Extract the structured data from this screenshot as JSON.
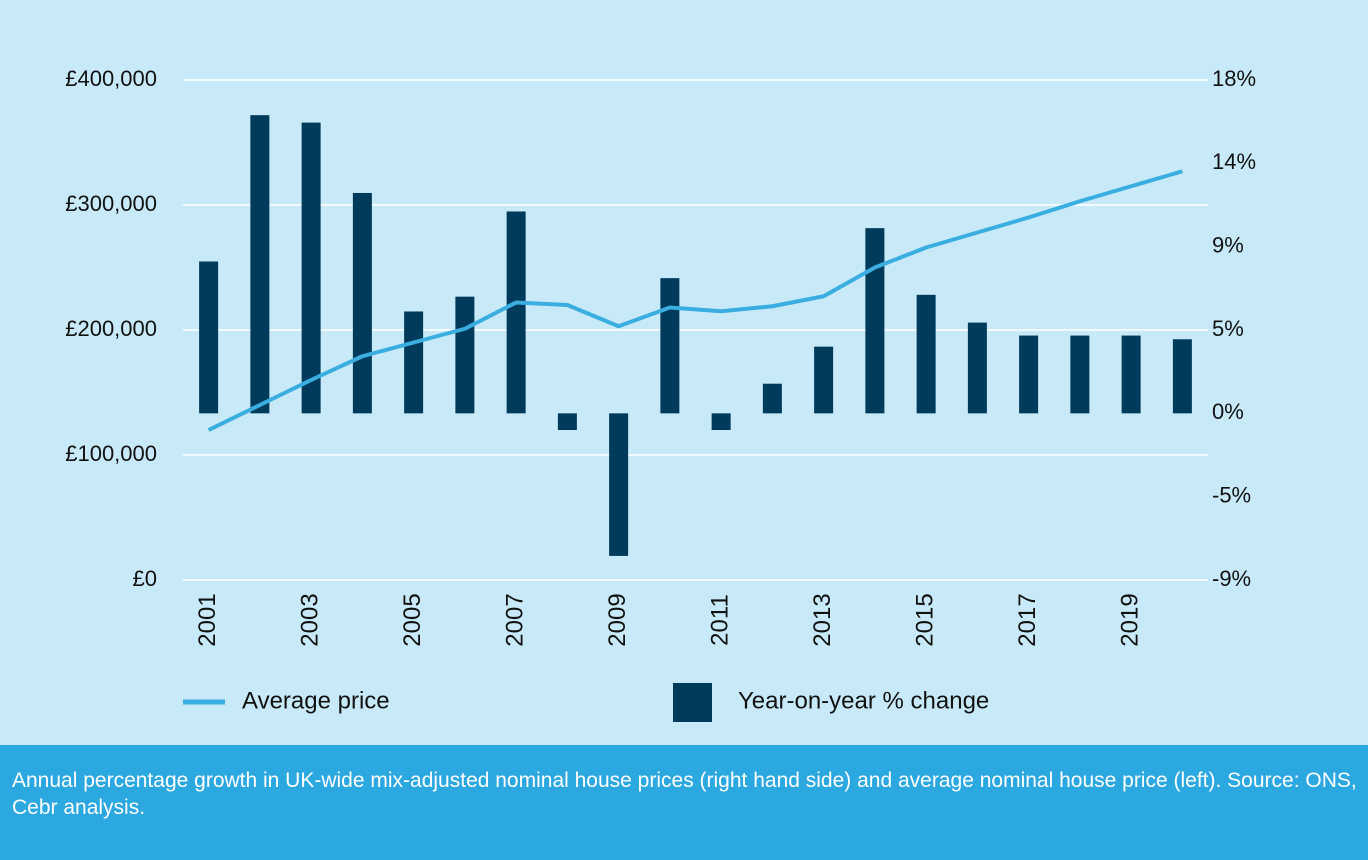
{
  "chart_data": {
    "type": "bar",
    "caption": "Annual percentage growth in UK-wide mix-adjusted nominal house prices (right hand side) and average nominal house price (left). Source: ONS, Cebr analysis.",
    "categories": [
      "2001",
      null,
      "2003",
      null,
      "2005",
      null,
      "2007",
      null,
      "2009",
      null,
      "2011",
      null,
      "2013",
      null,
      "2015",
      null,
      "2017",
      null,
      "2019",
      null
    ],
    "series": [
      {
        "name": "Average price",
        "type": "line",
        "color": "#3aaee0",
        "values": [
          120000,
          140000,
          160000,
          179000,
          190000,
          201000,
          222000,
          220000,
          203000,
          218000,
          215000,
          219000,
          227000,
          250000,
          266000,
          278000,
          290000,
          303000,
          315000,
          327000
        ]
      },
      {
        "name": "Year-on-year % change",
        "type": "bar",
        "axis": "y2",
        "color": "#003b5c",
        "values": [
          8.2,
          16.1,
          15.7,
          11.9,
          5.5,
          6.3,
          10.9,
          -0.9,
          -7.7,
          7.3,
          -0.9,
          1.6,
          3.6,
          10.0,
          6.4,
          4.9,
          4.2,
          4.2,
          4.2,
          4.0
        ]
      }
    ],
    "ylim": [
      0,
      400000
    ],
    "yticks": [
      {
        "value": 0,
        "label": "£0"
      },
      {
        "value": 100000,
        "label": "£100,000"
      },
      {
        "value": 200000,
        "label": "£200,000"
      },
      {
        "value": 300000,
        "label": "£300,000"
      },
      {
        "value": 400000,
        "label": "£400,000"
      }
    ],
    "y2lim": [
      -9,
      18
    ],
    "y2ticks": [
      {
        "value": -9,
        "label": "-9%"
      },
      {
        "value": -4.5,
        "label": "-5%"
      },
      {
        "value": 0,
        "label": "0%"
      },
      {
        "value": 4.5,
        "label": "5%"
      },
      {
        "value": 9,
        "label": "9%"
      },
      {
        "value": 13.5,
        "label": "14%"
      },
      {
        "value": 18,
        "label": "18%"
      }
    ],
    "grid": true
  }
}
